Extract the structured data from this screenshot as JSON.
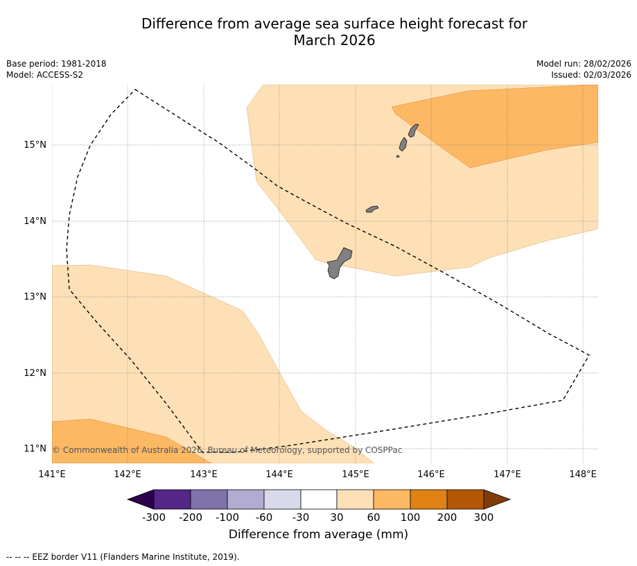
{
  "title_line1": "Difference from average sea surface height forecast for",
  "title_line2": "March 2026",
  "meta": {
    "base_period": "Base period: 1981-2018",
    "model": "Model: ACCESS-S2",
    "model_run": "Model run: 28/02/2026",
    "issued": "Issued: 02/03/2026"
  },
  "axes": {
    "lon_labels": [
      "141°E",
      "142°E",
      "143°E",
      "144°E",
      "145°E",
      "146°E",
      "147°E",
      "148°E"
    ],
    "lat_labels": [
      "15°N",
      "14°N",
      "13°N",
      "12°N",
      "11°N"
    ]
  },
  "copyright": "© Commonwealth of Australia 2026, Bureau of Meteorology, supported by COSPPac",
  "colorbar": {
    "title": "Difference from average (mm)",
    "labels": [
      "-300",
      "-200",
      "-100",
      "-60",
      "-30",
      "30",
      "60",
      "100",
      "200",
      "300"
    ],
    "colors": {
      "below": "#2d004b",
      "bins": [
        "#542788",
        "#8073ac",
        "#b2abd2",
        "#d8daeb",
        "#ffffff",
        "#fee0b6",
        "#fdb863",
        "#e08214",
        "#b35806"
      ],
      "above": "#7f3b08"
    }
  },
  "legend_text": "--  --  -- EEZ border V11 (Flanders Marine Institute, 2019).",
  "colors": {
    "light_orange": "#fee0b6",
    "mid_orange": "#fdb863",
    "land": "#808080",
    "grid": "#808080"
  }
}
